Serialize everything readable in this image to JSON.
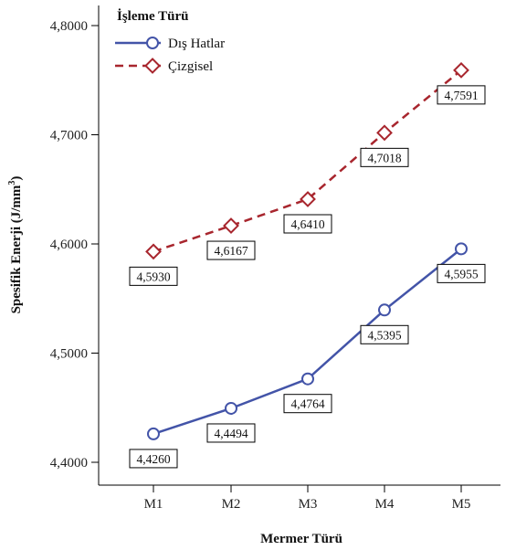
{
  "chart_data": {
    "type": "line",
    "categories": [
      "M1",
      "M2",
      "M3",
      "M4",
      "M5"
    ],
    "xlabel": "Mermer Türü",
    "ylabel": "Spesifik Enerji (J/mm",
    "ylabel_sup": "3",
    "ylabel_close": ")",
    "ylim": [
      4.38,
      4.81
    ],
    "yticks": [
      4.4,
      4.5,
      4.6,
      4.7,
      4.8
    ],
    "ytick_labels": [
      "4,4000",
      "4,5000",
      "4,6000",
      "4,7000",
      "4,8000"
    ],
    "grid": false,
    "legend": {
      "title": "İşleme Türü",
      "placement": "top-left"
    },
    "series": [
      {
        "name": "Dış Hatlar",
        "color": "#4354a8",
        "marker": "circle",
        "line_style": "solid",
        "values": [
          4.426,
          4.4494,
          4.4764,
          4.5395,
          4.5955
        ],
        "labels": [
          "4,4260",
          "4,4494",
          "4,4764",
          "4,5395",
          "4,5955"
        ]
      },
      {
        "name": "Çizgisel",
        "color": "#a8262e",
        "marker": "diamond",
        "line_style": "dashed",
        "values": [
          4.593,
          4.6167,
          4.641,
          4.7018,
          4.7591
        ],
        "labels": [
          "4,5930",
          "4,6167",
          "4,6410",
          "4,7018",
          "4,7591"
        ]
      }
    ]
  }
}
